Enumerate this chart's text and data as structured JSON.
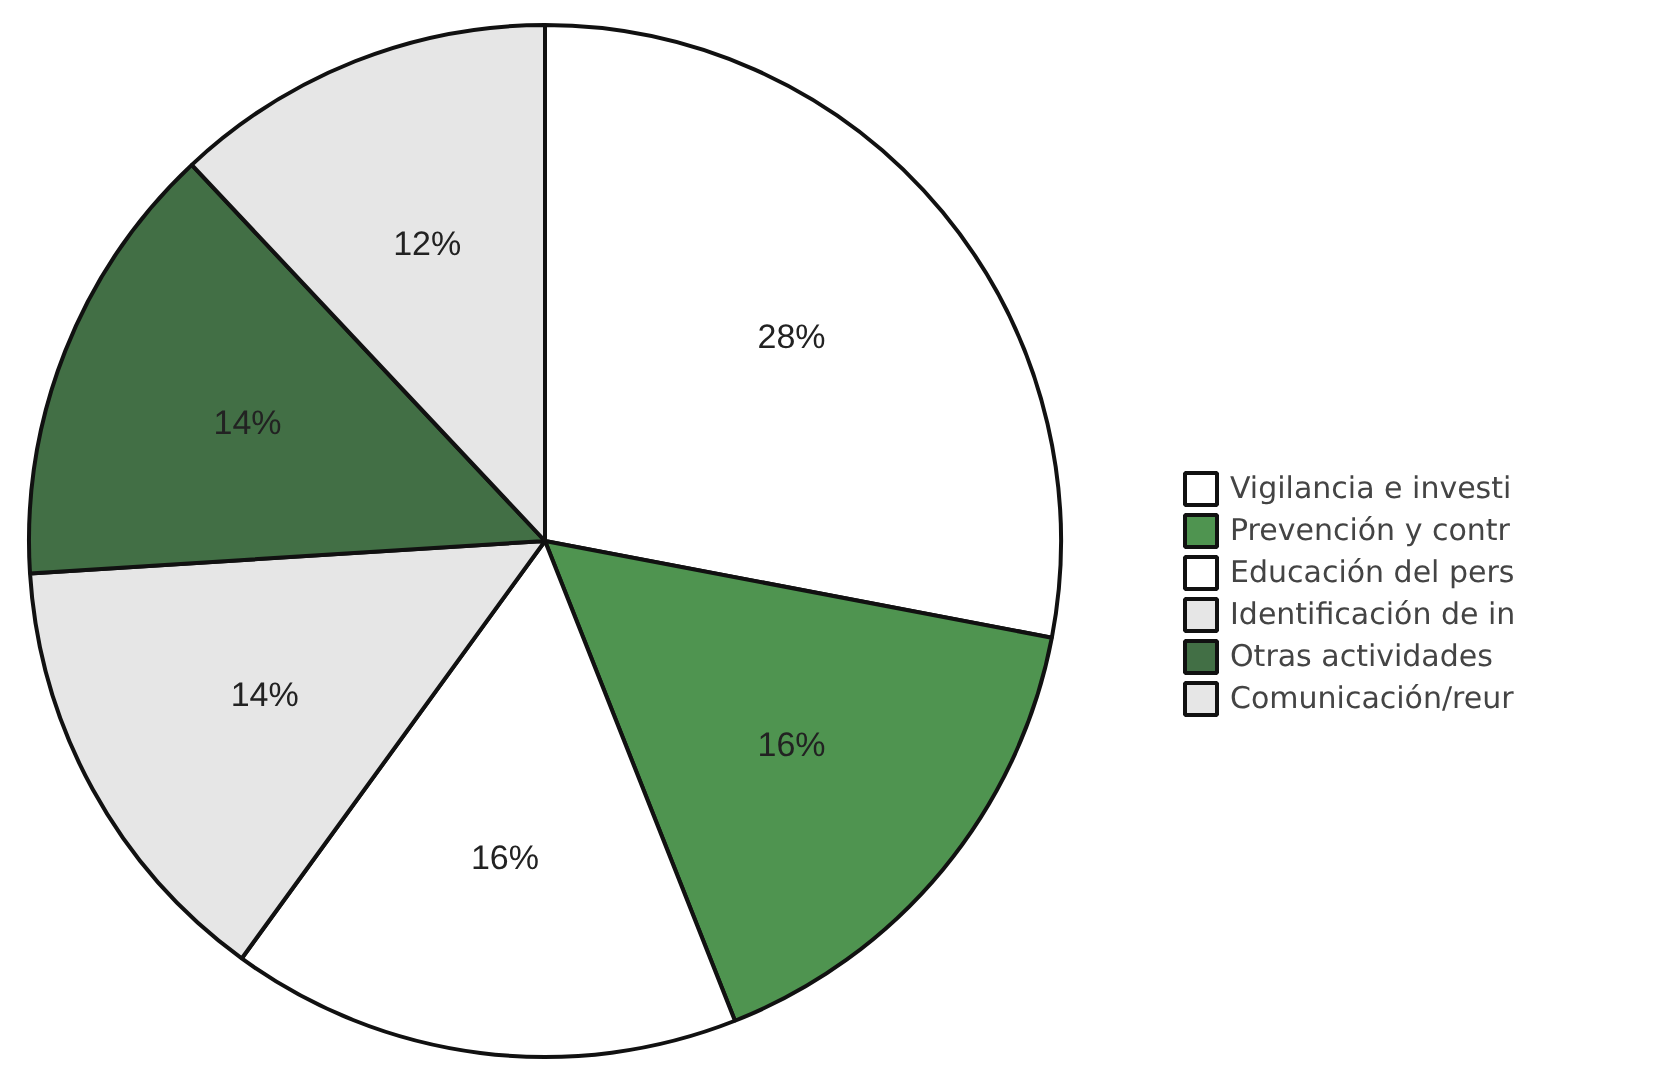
{
  "chart_data": {
    "type": "pie",
    "categories": [
      "Vigilancia e investi",
      "Prevención y contr",
      "Educación del pers",
      "Identificación de in",
      "Otras actividades",
      "Comunicación/reur"
    ],
    "values": [
      28,
      16,
      16,
      14,
      14,
      12
    ],
    "value_labels": [
      "28%",
      "16%",
      "16%",
      "14%",
      "14%",
      "12%"
    ],
    "colors": [
      "#ffffff",
      "#4f9450",
      "#ffffff",
      "#e6e6e6",
      "#426f45",
      "#e6e6e6"
    ],
    "legend": "right"
  }
}
